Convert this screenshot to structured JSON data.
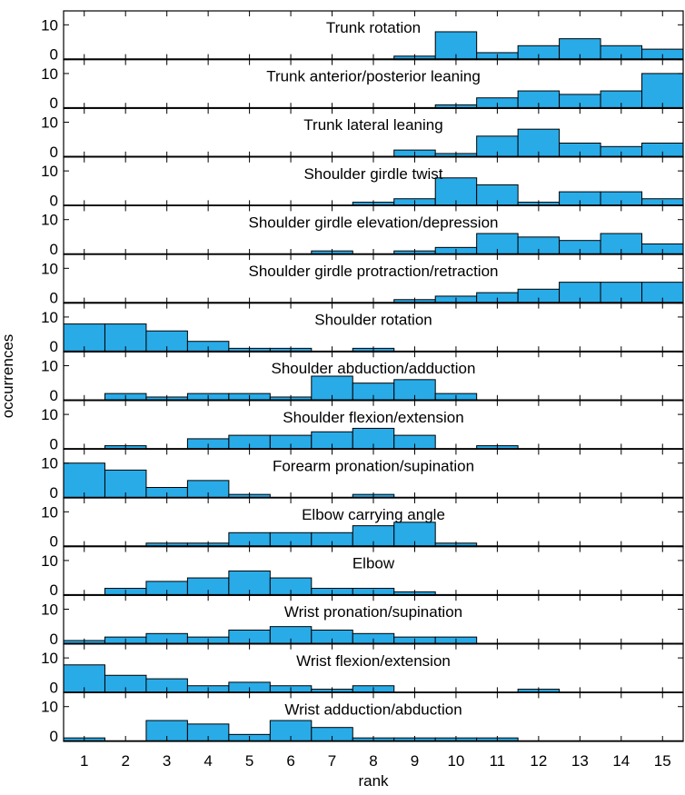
{
  "chart_data": {
    "type": "bar",
    "xlabel": "rank",
    "ylabel": "occurrences",
    "x_ticks": [
      1,
      2,
      3,
      4,
      5,
      6,
      7,
      8,
      9,
      10,
      11,
      12,
      13,
      14,
      15
    ],
    "xlim": [
      0.5,
      15.5
    ],
    "ylim": [
      0,
      14
    ],
    "y_ticks": [
      0,
      10
    ],
    "bar_color": "#29abe8",
    "bar_edge_color": "#000000",
    "panels": [
      {
        "title": "Trunk rotation",
        "values": [
          0,
          0,
          0,
          0,
          0,
          0,
          0,
          0,
          1,
          8,
          2,
          4,
          6,
          4,
          3
        ]
      },
      {
        "title": "Trunk anterior/posterior leaning",
        "values": [
          0,
          0,
          0,
          0,
          0,
          0,
          0,
          0,
          0,
          1,
          3,
          5,
          4,
          5,
          10
        ]
      },
      {
        "title": "Trunk lateral leaning",
        "values": [
          0,
          0,
          0,
          0,
          0,
          0,
          0,
          0,
          2,
          1,
          6,
          8,
          4,
          3,
          4
        ]
      },
      {
        "title": "Shoulder girdle twist",
        "values": [
          0,
          0,
          0,
          0,
          0,
          0,
          0,
          1,
          2,
          8,
          6,
          1,
          4,
          4,
          2
        ]
      },
      {
        "title": "Shoulder girdle elevation/depression",
        "values": [
          0,
          0,
          0,
          0,
          0,
          0,
          1,
          0,
          1,
          2,
          6,
          5,
          4,
          6,
          3
        ]
      },
      {
        "title": "Shoulder girdle protraction/retraction",
        "values": [
          0,
          0,
          0,
          0,
          0,
          0,
          0,
          0,
          1,
          2,
          3,
          4,
          6,
          6,
          6
        ]
      },
      {
        "title": "Shoulder rotation",
        "values": [
          8,
          8,
          6,
          3,
          1,
          1,
          0,
          1,
          0,
          0,
          0,
          0,
          0,
          0,
          0
        ]
      },
      {
        "title": "Shoulder abduction/adduction",
        "values": [
          0,
          2,
          1,
          2,
          2,
          1,
          7,
          5,
          6,
          2,
          0,
          0,
          0,
          0,
          0
        ]
      },
      {
        "title": "Shoulder flexion/extension",
        "values": [
          0,
          1,
          0,
          3,
          4,
          4,
          5,
          6,
          4,
          0,
          1,
          0,
          0,
          0,
          0
        ]
      },
      {
        "title": "Forearm pronation/supination",
        "values": [
          10,
          8,
          3,
          5,
          1,
          0,
          0,
          1,
          0,
          0,
          0,
          0,
          0,
          0,
          0
        ]
      },
      {
        "title": "Elbow carrying angle",
        "values": [
          0,
          0,
          1,
          1,
          4,
          4,
          4,
          6,
          7,
          1,
          0,
          0,
          0,
          0,
          0
        ]
      },
      {
        "title": "Elbow",
        "values": [
          0,
          2,
          4,
          5,
          7,
          5,
          2,
          2,
          1,
          0,
          0,
          0,
          0,
          0,
          0
        ]
      },
      {
        "title": "Wrist pronation/supination",
        "values": [
          1,
          2,
          3,
          2,
          4,
          5,
          4,
          3,
          2,
          2,
          0,
          0,
          0,
          0,
          0
        ]
      },
      {
        "title": "Wrist flexion/extension",
        "values": [
          8,
          5,
          4,
          2,
          3,
          2,
          1,
          2,
          0,
          0,
          0,
          1,
          0,
          0,
          0
        ]
      },
      {
        "title": "Wrist adduction/abduction",
        "values": [
          1,
          0,
          6,
          5,
          2,
          6,
          4,
          1,
          1,
          1,
          1,
          0,
          0,
          0,
          0
        ]
      }
    ]
  }
}
